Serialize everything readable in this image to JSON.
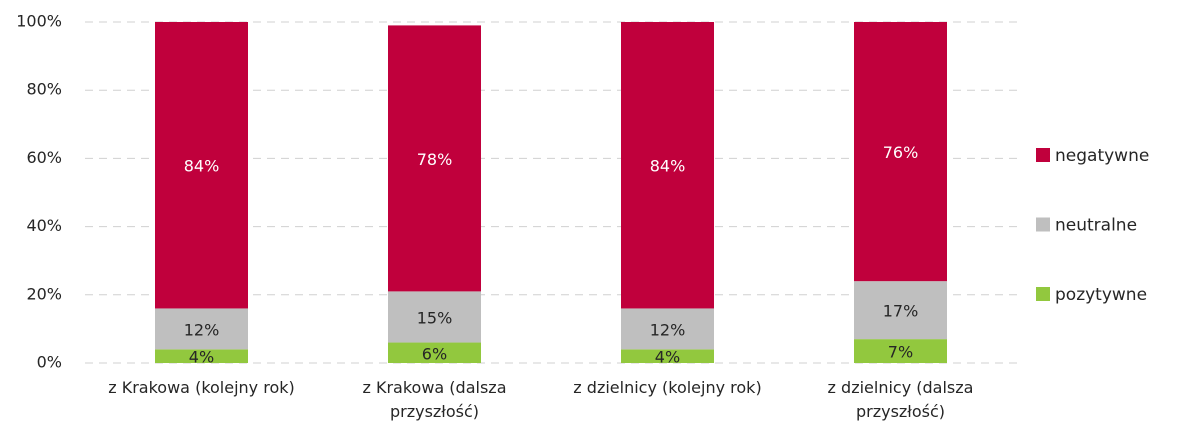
{
  "chart_data": {
    "type": "stacked_bar",
    "categories": [
      "z Krakowa (kolejny rok)",
      "z Krakowa (dalsza przyszłość)",
      "z dzielnicy (kolejny rok)",
      "z dzielnicy (dalsza przyszłość)"
    ],
    "series": [
      {
        "name": "pozytywne",
        "color": "#92c83e",
        "values": [
          4,
          6,
          4,
          7
        ],
        "value_labels": [
          "4%",
          "6%",
          "4%",
          "7%"
        ]
      },
      {
        "name": "neutralne",
        "color": "#bfbfbf",
        "values": [
          12,
          15,
          12,
          17
        ],
        "value_labels": [
          "12%",
          "15%",
          "12%",
          "17%"
        ]
      },
      {
        "name": "negatywne",
        "color": "#c0003c",
        "values": [
          84,
          78,
          84,
          76
        ],
        "value_labels": [
          "84%",
          "78%",
          "84%",
          "76%"
        ]
      }
    ],
    "ylim": [
      0,
      100
    ],
    "yticks": [
      {
        "value": 0,
        "label": "0%"
      },
      {
        "value": 20,
        "label": "20%"
      },
      {
        "value": 40,
        "label": "40%"
      },
      {
        "value": 60,
        "label": "60%"
      },
      {
        "value": 80,
        "label": "80%"
      },
      {
        "value": 100,
        "label": "100%"
      }
    ],
    "grid": true,
    "legend": "right"
  }
}
